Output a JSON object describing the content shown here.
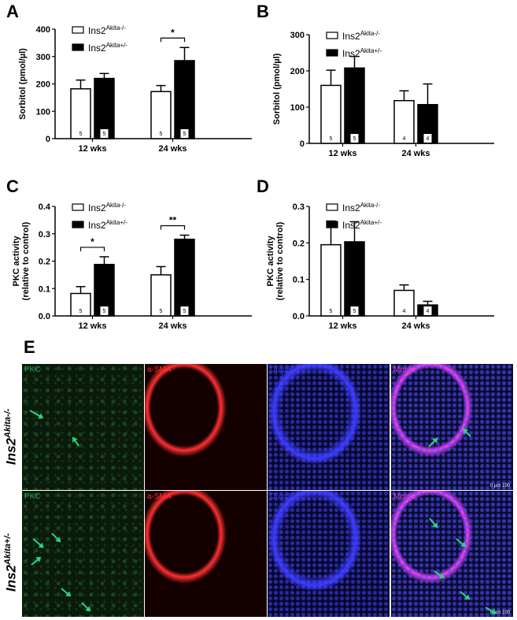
{
  "chart_data": [
    {
      "panel": "A",
      "type": "bar",
      "categories": [
        "12 wks",
        "24 wks"
      ],
      "ylabel": "Sorbitol (pmol/µl)",
      "ylim": [
        0,
        400
      ],
      "yticks": [
        0,
        100,
        200,
        300,
        400
      ],
      "legend": [
        {
          "base": "Ins2",
          "sup": "Akita-/-"
        },
        {
          "base": "Ins2",
          "sup": "Akita+/-"
        }
      ],
      "series": [
        {
          "values": [
            182,
            172
          ],
          "err": [
            32,
            22
          ],
          "n": [
            "5",
            "5"
          ]
        },
        {
          "values": [
            220,
            285
          ],
          "err": [
            18,
            48
          ],
          "n": [
            "5",
            "5"
          ]
        }
      ],
      "sig": [
        {
          "cat": 1,
          "text": "*"
        }
      ]
    },
    {
      "panel": "B",
      "type": "bar",
      "categories": [
        "12 wks",
        "24 wks"
      ],
      "ylabel": "Sorbitol (pmol/µl)",
      "ylim": [
        0,
        300
      ],
      "yticks": [
        0,
        100,
        200,
        300
      ],
      "legend": [
        {
          "base": "Ins2",
          "sup": "Akita-/-"
        },
        {
          "base": "Ins2",
          "sup": "Akita+/-"
        }
      ],
      "series": [
        {
          "values": [
            160,
            118
          ],
          "err": [
            42,
            27
          ],
          "n": [
            "5",
            "4"
          ]
        },
        {
          "values": [
            208,
            107
          ],
          "err": [
            32,
            57
          ],
          "n": [
            "5",
            "4"
          ]
        }
      ],
      "sig": []
    },
    {
      "panel": "C",
      "type": "bar",
      "categories": [
        "12 wks",
        "24 wks"
      ],
      "ylabel": "PKC activity",
      "ylabel2": "(relative to control)",
      "ylim": [
        0,
        0.4
      ],
      "yticks": [
        "0.0",
        "0.1",
        "0.2",
        "0.3",
        "0.4"
      ],
      "legend": [
        {
          "base": "Ins2",
          "sup": "Akita-/-"
        },
        {
          "base": "Ins2",
          "sup": "Akita+/-"
        }
      ],
      "series": [
        {
          "values": [
            0.082,
            0.15
          ],
          "err": [
            0.025,
            0.03
          ],
          "n": [
            "5",
            "5"
          ]
        },
        {
          "values": [
            0.188,
            0.28
          ],
          "err": [
            0.028,
            0.015
          ],
          "n": [
            "5",
            "5"
          ]
        }
      ],
      "sig": [
        {
          "cat": 0,
          "text": "*"
        },
        {
          "cat": 1,
          "text": "**"
        }
      ]
    },
    {
      "panel": "D",
      "type": "bar",
      "categories": [
        "12 wks",
        "24 wks"
      ],
      "ylabel": "PKC activity",
      "ylabel2": "(relative to control)",
      "ylim": [
        0,
        0.3
      ],
      "yticks": [
        "0.0",
        "0.1",
        "0.2",
        "0.3"
      ],
      "legend": [
        {
          "base": "Ins2",
          "sup": "Akita-/-"
        },
        {
          "base": "Ins2",
          "sup": "Akita+/-"
        }
      ],
      "series": [
        {
          "values": [
            0.195,
            0.07
          ],
          "err": [
            0.065,
            0.015
          ],
          "n": [
            "5",
            "4"
          ]
        },
        {
          "values": [
            0.203,
            0.03
          ],
          "err": [
            0.055,
            0.01
          ],
          "n": [
            "5",
            "4"
          ]
        }
      ],
      "sig": []
    }
  ],
  "panel_e": {
    "label": "E",
    "rows": [
      {
        "base": "Ins2",
        "sup": "Akita-/-",
        "scale": "0  µm  100"
      },
      {
        "base": "Ins2",
        "sup": "Akita+/-",
        "scale": "0  µm  100"
      }
    ],
    "channels": [
      {
        "name": "PKC",
        "color": "#2aa84a"
      },
      {
        "name": "a-SMA",
        "color": "#ff3030"
      },
      {
        "name": "Draq5",
        "color": "#3a3aff"
      },
      {
        "name": "Merge",
        "color": "#e040e0"
      }
    ]
  }
}
